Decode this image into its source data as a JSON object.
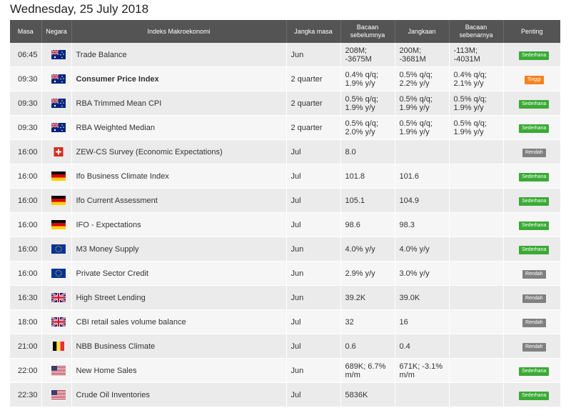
{
  "title": "Wednesday, 25 July 2018",
  "headers": {
    "time": "Masa",
    "country": "Negara",
    "indicator": "Indeks Makroekonomi",
    "period": "Jangka masa",
    "previous": "Bacaan sebelumnya",
    "forecast": "Jangkaan",
    "actual": "Bacaan sebenarnya",
    "importance": "Penting"
  },
  "importance_colors": {
    "Sederhana": "#3aaa35",
    "Tinggi": "#f58220",
    "Rendah": "#808080"
  },
  "rows": [
    {
      "time": "06:45",
      "flag": "australia-flag-icon",
      "indicator": "Trade Balance",
      "period": "Jun",
      "previous": "208M; -3675M",
      "forecast": "200M; -3681M",
      "actual": "-113M; -4031M",
      "actual_negative": true,
      "bold": false,
      "importance": "Sederhana"
    },
    {
      "time": "09:30",
      "flag": "australia-flag-icon",
      "indicator": "Consumer Price Index",
      "period": "2 quarter",
      "previous": "0.4% q/q; 1.9% y/y",
      "forecast": "0.5% q/q; 2.2% y/y",
      "actual": "0.4% q/q; 2.1% y/y",
      "actual_negative": true,
      "bold": true,
      "importance": "Tinggi"
    },
    {
      "time": "09:30",
      "flag": "australia-flag-icon",
      "indicator": "RBA Trimmed Mean CPI",
      "period": "2 quarter",
      "previous": "0.5% q/q; 1.9% y/y",
      "forecast": "0.5% q/q; 1.9% y/y",
      "actual": "0.5% q/q; 1.9% y/y",
      "actual_negative": false,
      "bold": false,
      "importance": "Sederhana"
    },
    {
      "time": "09:30",
      "flag": "australia-flag-icon",
      "indicator": "RBA Weighted Median",
      "period": "2 quarter",
      "previous": "0.5% q/q; 2.0% y/y",
      "forecast": "0.5% q/q; 1.9% y/y",
      "actual": "0.5% q/q; 1.9% y/y",
      "actual_negative": false,
      "bold": false,
      "importance": "Sederhana"
    },
    {
      "time": "16:00",
      "flag": "switzerland-flag-icon",
      "indicator": "ZEW-CS Survey (Economic Expectations)",
      "period": "Jul",
      "previous": "8.0",
      "forecast": "",
      "actual": "",
      "actual_negative": false,
      "bold": false,
      "importance": "Rendah"
    },
    {
      "time": "16:00",
      "flag": "germany-flag-icon",
      "indicator": "Ifo Business Climate Index",
      "period": "Jul",
      "previous": "101.8",
      "forecast": "101.6",
      "actual": "",
      "actual_negative": false,
      "bold": false,
      "importance": "Sederhana"
    },
    {
      "time": "16:00",
      "flag": "germany-flag-icon",
      "indicator": "Ifo Current Assessment",
      "period": "Jul",
      "previous": "105.1",
      "forecast": "104.9",
      "actual": "",
      "actual_negative": false,
      "bold": false,
      "importance": "Sederhana"
    },
    {
      "time": "16:00",
      "flag": "germany-flag-icon",
      "indicator": "IFO - Expectations",
      "period": "Jul",
      "previous": "98.6",
      "forecast": "98.3",
      "actual": "",
      "actual_negative": false,
      "bold": false,
      "importance": "Sederhana"
    },
    {
      "time": "16:00",
      "flag": "eu-flag-icon",
      "indicator": "M3 Money Supply",
      "period": "Jun",
      "previous": "4.0% y/y",
      "forecast": "4.0% y/y",
      "actual": "",
      "actual_negative": false,
      "bold": false,
      "importance": "Sederhana"
    },
    {
      "time": "16:00",
      "flag": "eu-flag-icon",
      "indicator": "Private Sector Credit",
      "period": "Jun",
      "previous": "2.9% y/y",
      "forecast": "3.0% y/y",
      "actual": "",
      "actual_negative": false,
      "bold": false,
      "importance": "Rendah"
    },
    {
      "time": "16:30",
      "flag": "uk-flag-icon",
      "indicator": "High Street Lending",
      "period": "Jun",
      "previous": "39.2K",
      "forecast": "39.0K",
      "actual": "",
      "actual_negative": false,
      "bold": false,
      "importance": "Rendah"
    },
    {
      "time": "18:00",
      "flag": "uk-flag-icon",
      "indicator": "CBI retail sales volume balance",
      "period": "Jul",
      "previous": "32",
      "forecast": "16",
      "actual": "",
      "actual_negative": false,
      "bold": false,
      "importance": "Rendah"
    },
    {
      "time": "21:00",
      "flag": "belgium-flag-icon",
      "indicator": "NBB Business Climate",
      "period": "Jul",
      "previous": "0.6",
      "forecast": "0.4",
      "actual": "",
      "actual_negative": false,
      "bold": false,
      "importance": "Rendah"
    },
    {
      "time": "22:00",
      "flag": "usa-flag-icon",
      "indicator": "New Home Sales",
      "period": "Jun",
      "previous": "689K; 6.7% m/m",
      "forecast": "671K; -3.1% m/m",
      "actual": "",
      "actual_negative": false,
      "bold": false,
      "importance": "Sederhana"
    },
    {
      "time": "22:30",
      "flag": "usa-flag-icon",
      "indicator": "Crude Oil Inventories",
      "period": "Jul",
      "previous": "5836K",
      "forecast": "",
      "actual": "",
      "actual_negative": false,
      "bold": false,
      "importance": "Sederhana"
    }
  ]
}
